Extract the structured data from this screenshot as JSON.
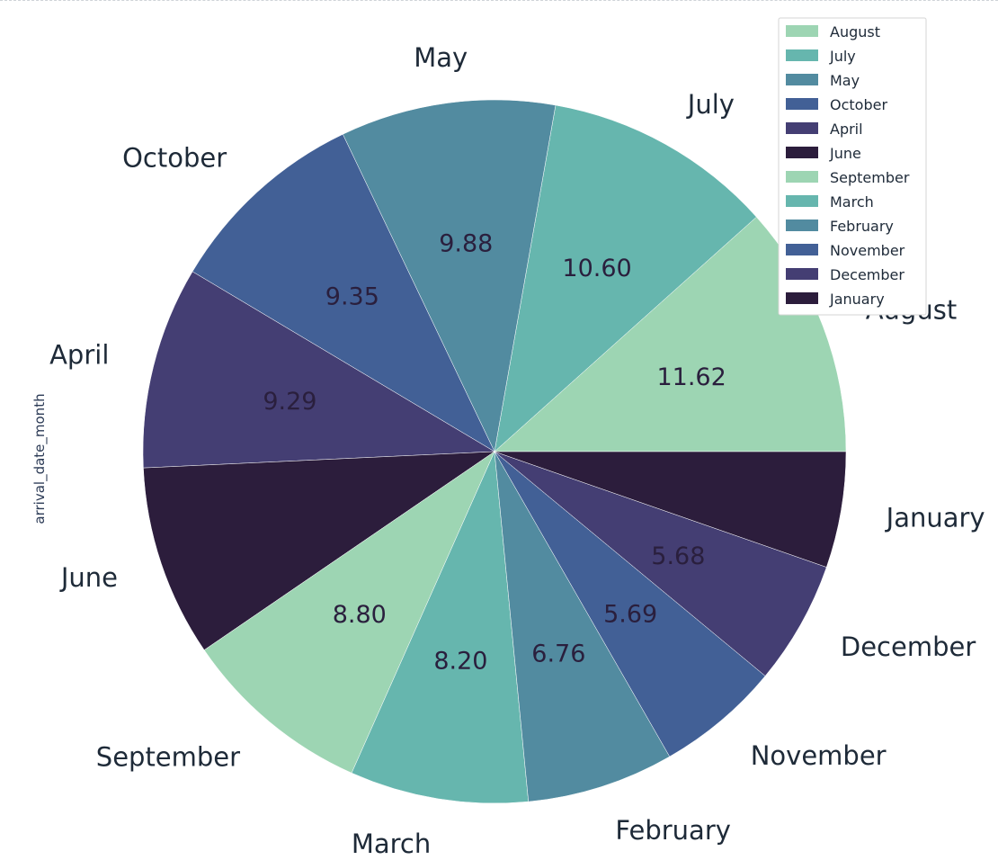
{
  "chart_data": {
    "type": "pie",
    "ylabel": "arrival_date_month",
    "slices": [
      {
        "label": "August",
        "value": 11.62,
        "value_text": "11.62",
        "color": "#9dd5b3"
      },
      {
        "label": "July",
        "value": 10.6,
        "value_text": "10.60",
        "color": "#66b6ae"
      },
      {
        "label": "May",
        "value": 9.88,
        "value_text": "9.88",
        "color": "#528ba0"
      },
      {
        "label": "October",
        "value": 9.35,
        "value_text": "9.35",
        "color": "#426096"
      },
      {
        "label": "April",
        "value": 9.29,
        "value_text": "9.29",
        "color": "#443e73"
      },
      {
        "label": "June",
        "value": 8.8,
        "value_text": "",
        "color": "#2c1d3c"
      },
      {
        "label": "September",
        "value": 8.8,
        "value_text": "8.80",
        "color": "#9dd5b3"
      },
      {
        "label": "March",
        "value": 8.2,
        "value_text": "8.20",
        "color": "#66b6ae"
      },
      {
        "label": "February",
        "value": 6.76,
        "value_text": "6.76",
        "color": "#528ba0"
      },
      {
        "label": "November",
        "value": 5.69,
        "value_text": "5.69",
        "color": "#426096"
      },
      {
        "label": "December",
        "value": 5.68,
        "value_text": "5.68",
        "color": "#443e73"
      },
      {
        "label": "January",
        "value": 5.33,
        "value_text": "",
        "color": "#2c1d3c"
      }
    ],
    "start_angle_deg": 0,
    "direction": "counterclockwise",
    "legend_position": "top-right"
  }
}
